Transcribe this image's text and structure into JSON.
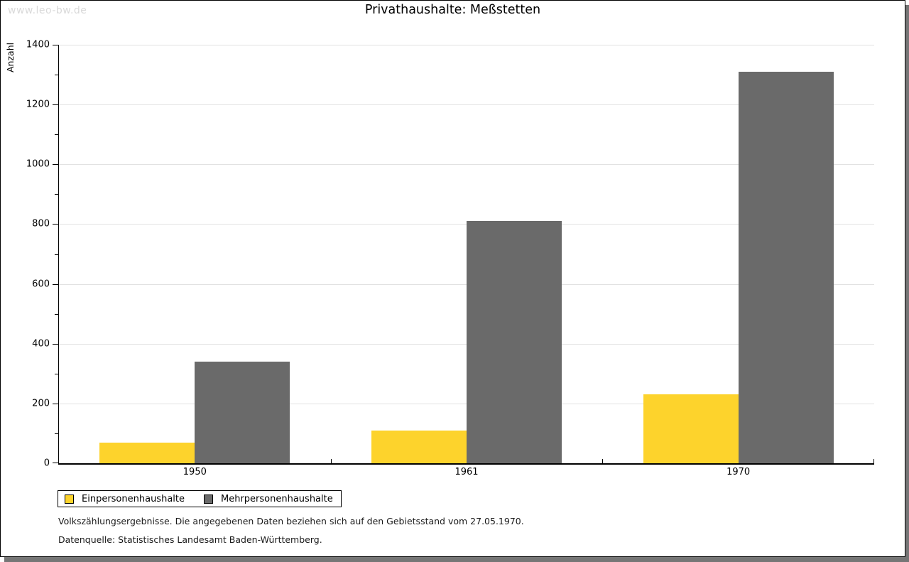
{
  "watermark": "www.leo-bw.de",
  "title": "Privathaushalte: Meßstetten",
  "footnotes": [
    "Volkszählungsergebnisse. Die angegebenen Daten beziehen sich auf den Gebietsstand vom 27.05.1970.",
    "Datenquelle: Statistisches Landesamt Baden-Württemberg."
  ],
  "chart_data": {
    "type": "bar",
    "title": "Privathaushalte: Meßstetten",
    "ylabel": "Anzahl",
    "xlabel": "",
    "categories": [
      "1950",
      "1961",
      "1970"
    ],
    "series": [
      {
        "name": "Einpersonenhaushalte",
        "color": "#FDD32C",
        "values": [
          70,
          110,
          230
        ]
      },
      {
        "name": "Mehrpersonenhaushalte",
        "color": "#6A6A6A",
        "values": [
          340,
          810,
          1310
        ]
      }
    ],
    "ylim": [
      0,
      1400
    ],
    "y_major_step": 200,
    "y_minor_step": 100,
    "grid": true,
    "legend_position": "bottom-left"
  },
  "colors": {
    "gridline": "#E2E2E2",
    "axis": "#000000",
    "watermark_text": "#D9D9D9",
    "frame_shadow": "#767676",
    "background": "#FFFFFF"
  }
}
